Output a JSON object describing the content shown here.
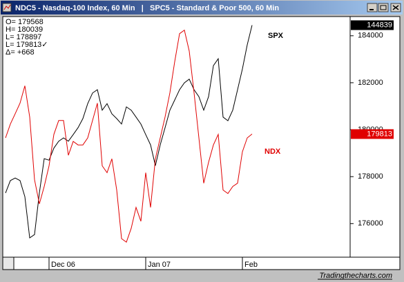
{
  "chart_data": {
    "type": "line",
    "title": "NDC5 - Nasdaq-100 Index, 60 Min   |   SPC5 - Standard & Poor 500, 60 Min",
    "info": [
      "O= 179568",
      "H= 180039",
      "L= 178897",
      "L= 179813✓",
      "Δ=    +668"
    ],
    "watermark": "Tradingthecharts.com",
    "categories": [
      null,
      null,
      null,
      null,
      null,
      null,
      null,
      null,
      null,
      "Dec 06",
      null,
      null,
      null,
      null,
      null,
      null,
      null,
      null,
      null,
      null,
      null,
      null,
      null,
      null,
      null,
      null,
      null,
      null,
      null,
      "Jan 07",
      null,
      null,
      null,
      null,
      null,
      null,
      null,
      null,
      null,
      null,
      null,
      null,
      null,
      null,
      null,
      null,
      null,
      null,
      null,
      "Feb",
      null,
      null,
      null,
      null,
      null,
      null,
      null,
      null,
      null,
      null,
      null,
      null,
      null,
      null,
      null,
      null,
      null,
      null,
      null,
      null,
      null,
      null
    ],
    "series": [
      {
        "name": "SPX",
        "color": "#000000",
        "axis": "y2",
        "values": [
          140240,
          140580,
          140650,
          140580,
          140140,
          139010,
          139100,
          140240,
          141180,
          141140,
          141470,
          141660,
          141750,
          141660,
          141840,
          142030,
          142280,
          142690,
          142980,
          143070,
          142510,
          142690,
          142410,
          142280,
          142130,
          142600,
          142510,
          142320,
          142130,
          141840,
          141560,
          140990,
          141560,
          142030,
          142510,
          142790,
          143070,
          143260,
          143360,
          143070,
          142880,
          142510,
          142880,
          143730,
          143920,
          142320,
          142220,
          142510,
          143070,
          143640,
          144300,
          144839,
          null,
          null,
          null,
          null,
          null,
          null,
          null,
          null,
          null,
          null,
          null,
          null,
          null,
          null,
          null,
          null,
          null,
          null,
          null,
          null
        ]
      },
      {
        "name": "NDX",
        "color": "#e00000",
        "values": [
          179650,
          180240,
          180680,
          181130,
          181870,
          180540,
          177870,
          176840,
          177580,
          178460,
          179800,
          180390,
          180390,
          178910,
          179500,
          179350,
          179350,
          179650,
          180390,
          181130,
          178460,
          178170,
          178760,
          177430,
          175360,
          175210,
          175800,
          176690,
          176100,
          178170,
          176690,
          178760,
          179650,
          180540,
          181570,
          182900,
          184090,
          184240,
          183350,
          181570,
          179650,
          177720,
          178610,
          179350,
          179800,
          177430,
          177280,
          177580,
          177720,
          179060,
          179650,
          179813,
          null,
          null,
          null,
          null,
          null,
          null,
          null,
          null,
          null,
          null,
          null,
          null,
          null,
          null,
          null,
          null,
          null,
          null,
          null,
          null
        ]
      }
    ],
    "ylim": [
      174600,
      184700
    ],
    "yticks": [
      176000,
      178000,
      180000,
      182000,
      184000
    ],
    "y2lim": [
      138500,
      145000
    ],
    "grid": false
  }
}
